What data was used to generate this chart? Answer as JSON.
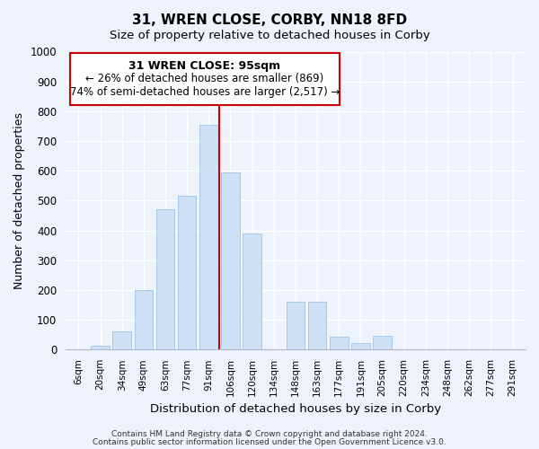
{
  "title": "31, WREN CLOSE, CORBY, NN18 8FD",
  "subtitle": "Size of property relative to detached houses in Corby",
  "xlabel": "Distribution of detached houses by size in Corby",
  "ylabel": "Number of detached properties",
  "bar_labels": [
    "6sqm",
    "20sqm",
    "34sqm",
    "49sqm",
    "63sqm",
    "77sqm",
    "91sqm",
    "106sqm",
    "120sqm",
    "134sqm",
    "148sqm",
    "163sqm",
    "177sqm",
    "191sqm",
    "205sqm",
    "220sqm",
    "234sqm",
    "248sqm",
    "262sqm",
    "277sqm",
    "291sqm"
  ],
  "bar_values": [
    0,
    12,
    62,
    200,
    470,
    515,
    755,
    595,
    390,
    0,
    160,
    160,
    42,
    22,
    45,
    0,
    0,
    0,
    0,
    0,
    0
  ],
  "bar_color": "#cde0f5",
  "bar_edge_color": "#a8c8e8",
  "vline_color": "#cc0000",
  "annotation_title": "31 WREN CLOSE: 95sqm",
  "annotation_line1": "← 26% of detached houses are smaller (869)",
  "annotation_line2": "74% of semi-detached houses are larger (2,517) →",
  "annotation_box_facecolor": "#ffffff",
  "annotation_box_edgecolor": "#cc0000",
  "ylim": [
    0,
    1000
  ],
  "yticks": [
    0,
    100,
    200,
    300,
    400,
    500,
    600,
    700,
    800,
    900,
    1000
  ],
  "footer1": "Contains HM Land Registry data © Crown copyright and database right 2024.",
  "footer2": "Contains public sector information licensed under the Open Government Licence v3.0.",
  "bg_color": "#eef3fb",
  "plot_bg_color": "#eef3fb",
  "grid_color": "#ffffff",
  "spine_color": "#b0b8c8"
}
